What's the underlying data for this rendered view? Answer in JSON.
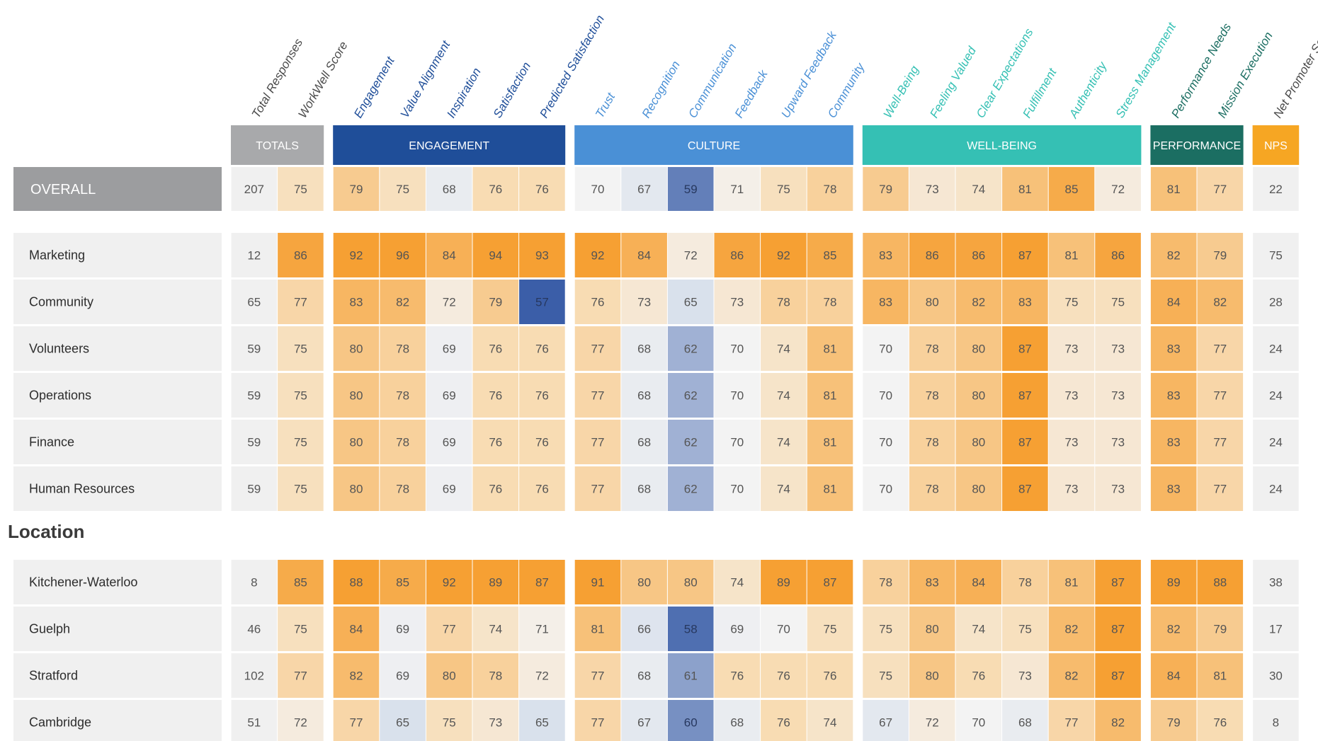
{
  "chart_data": {
    "type": "heatmap",
    "groups": [
      {
        "label": "TOTALS",
        "color": "#a8a9ab"
      },
      {
        "label": "ENGAGEMENT",
        "color": "#1f4e99"
      },
      {
        "label": "CULTURE",
        "color": "#4a90d6"
      },
      {
        "label": "WELL-BEING",
        "color": "#35c0b4"
      },
      {
        "label": "PERFORMANCE",
        "color": "#1b6e62"
      },
      {
        "label": "NPS",
        "color": "#f6a623"
      }
    ],
    "columns": [
      {
        "label": "Total Responses",
        "group": 0,
        "label_color": "#4a4a4a",
        "neutral": true
      },
      {
        "label": "WorkWell Score",
        "group": 0,
        "label_color": "#4a4a4a"
      },
      {
        "label": "Engagement",
        "group": 1,
        "label_color": "#1f4e99"
      },
      {
        "label": "Value Alignment",
        "group": 1,
        "label_color": "#1f4e99"
      },
      {
        "label": "Inspiration",
        "group": 1,
        "label_color": "#1f4e99"
      },
      {
        "label": "Satisfaction",
        "group": 1,
        "label_color": "#1f4e99"
      },
      {
        "label": "Predicted Satisfaction",
        "group": 1,
        "label_color": "#1f4e99"
      },
      {
        "label": "Trust",
        "group": 2,
        "label_color": "#4a90d6"
      },
      {
        "label": "Recognition",
        "group": 2,
        "label_color": "#4a90d6"
      },
      {
        "label": "Communication",
        "group": 2,
        "label_color": "#4a90d6"
      },
      {
        "label": "Feedback",
        "group": 2,
        "label_color": "#4a90d6"
      },
      {
        "label": "Upward Feedback",
        "group": 2,
        "label_color": "#4a90d6"
      },
      {
        "label": "Community",
        "group": 2,
        "label_color": "#4a90d6"
      },
      {
        "label": "Well-Being",
        "group": 3,
        "label_color": "#35c0b4"
      },
      {
        "label": "Feeling Valued",
        "group": 3,
        "label_color": "#35c0b4"
      },
      {
        "label": "Clear Expectations",
        "group": 3,
        "label_color": "#35c0b4"
      },
      {
        "label": "Fulfillment",
        "group": 3,
        "label_color": "#35c0b4"
      },
      {
        "label": "Authenticity",
        "group": 3,
        "label_color": "#35c0b4"
      },
      {
        "label": "Stress Management",
        "group": 3,
        "label_color": "#35c0b4"
      },
      {
        "label": "Performance Needs",
        "group": 4,
        "label_color": "#1b6e62"
      },
      {
        "label": "Mission Execution",
        "group": 4,
        "label_color": "#1b6e62"
      },
      {
        "label": "Net Promoter Score",
        "group": 5,
        "label_color": "#4a4a4a",
        "neutral": true
      }
    ],
    "overall": {
      "label": "OVERALL",
      "values": [
        207,
        75,
        79,
        75,
        68,
        76,
        76,
        70,
        67,
        59,
        71,
        75,
        78,
        79,
        73,
        74,
        81,
        85,
        72,
        81,
        77,
        22
      ]
    },
    "sections": [
      {
        "title": "",
        "rows": [
          {
            "label": "Marketing",
            "values": [
              12,
              86,
              92,
              96,
              84,
              94,
              93,
              92,
              84,
              72,
              86,
              92,
              85,
              83,
              86,
              86,
              87,
              81,
              86,
              82,
              79,
              75
            ]
          },
          {
            "label": "Community",
            "values": [
              65,
              77,
              83,
              82,
              72,
              79,
              57,
              76,
              73,
              65,
              73,
              78,
              78,
              83,
              80,
              82,
              83,
              75,
              75,
              84,
              82,
              28
            ]
          },
          {
            "label": "Volunteers",
            "values": [
              59,
              75,
              80,
              78,
              69,
              76,
              76,
              77,
              68,
              62,
              70,
              74,
              81,
              70,
              78,
              80,
              87,
              73,
              73,
              83,
              77,
              24
            ]
          },
          {
            "label": "Operations",
            "values": [
              59,
              75,
              80,
              78,
              69,
              76,
              76,
              77,
              68,
              62,
              70,
              74,
              81,
              70,
              78,
              80,
              87,
              73,
              73,
              83,
              77,
              24
            ]
          },
          {
            "label": "Finance",
            "values": [
              59,
              75,
              80,
              78,
              69,
              76,
              76,
              77,
              68,
              62,
              70,
              74,
              81,
              70,
              78,
              80,
              87,
              73,
              73,
              83,
              77,
              24
            ]
          },
          {
            "label": "Human Resources",
            "values": [
              59,
              75,
              80,
              78,
              69,
              76,
              76,
              77,
              68,
              62,
              70,
              74,
              81,
              70,
              78,
              80,
              87,
              73,
              73,
              83,
              77,
              24
            ]
          }
        ]
      },
      {
        "title": "Location",
        "rows": [
          {
            "label": "Kitchener-Waterloo",
            "values": [
              8,
              85,
              88,
              85,
              92,
              89,
              87,
              91,
              80,
              80,
              74,
              89,
              87,
              78,
              83,
              84,
              78,
              81,
              87,
              89,
              88,
              38
            ]
          },
          {
            "label": "Guelph",
            "values": [
              46,
              75,
              84,
              69,
              77,
              74,
              71,
              81,
              66,
              58,
              69,
              70,
              75,
              75,
              80,
              74,
              75,
              82,
              87,
              82,
              79,
              17
            ]
          },
          {
            "label": "Stratford",
            "values": [
              102,
              77,
              82,
              69,
              80,
              78,
              72,
              77,
              68,
              61,
              76,
              76,
              76,
              75,
              80,
              76,
              73,
              82,
              87,
              84,
              81,
              30
            ]
          },
          {
            "label": "Cambridge",
            "values": [
              51,
              72,
              77,
              65,
              75,
              73,
              65,
              77,
              67,
              60,
              68,
              76,
              74,
              67,
              72,
              70,
              68,
              77,
              82,
              79,
              76,
              8
            ]
          }
        ]
      }
    ],
    "color_scale": {
      "low_dark": "#3b5ea8",
      "low_light": "#d8e0ec",
      "mid": "#f3f3f3",
      "high_light": "#f8dcb4",
      "high_dark": "#f6a033",
      "neutral_fill": "#f0f0f0",
      "low_value": 57,
      "mid_value": 70,
      "high_value": 87
    }
  }
}
